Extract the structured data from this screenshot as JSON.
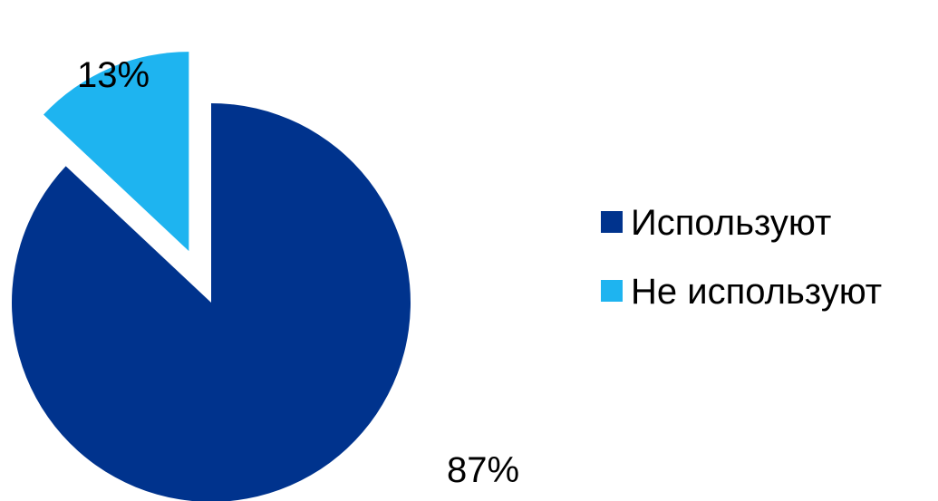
{
  "chart_data": {
    "type": "pie",
    "title": "",
    "categories": [
      "Используют",
      "Не используют"
    ],
    "values": [
      87,
      13
    ],
    "value_labels": [
      "87%",
      "13%"
    ],
    "colors": [
      "#00338D",
      "#1EB4F0"
    ],
    "exploded": [
      false,
      true
    ],
    "start_angle_deg": 0,
    "direction": "clockwise",
    "legend": {
      "position": "right",
      "items": [
        {
          "label": "Используют",
          "color": "#00338D"
        },
        {
          "label": "Не используют",
          "color": "#1EB4F0"
        }
      ]
    }
  }
}
